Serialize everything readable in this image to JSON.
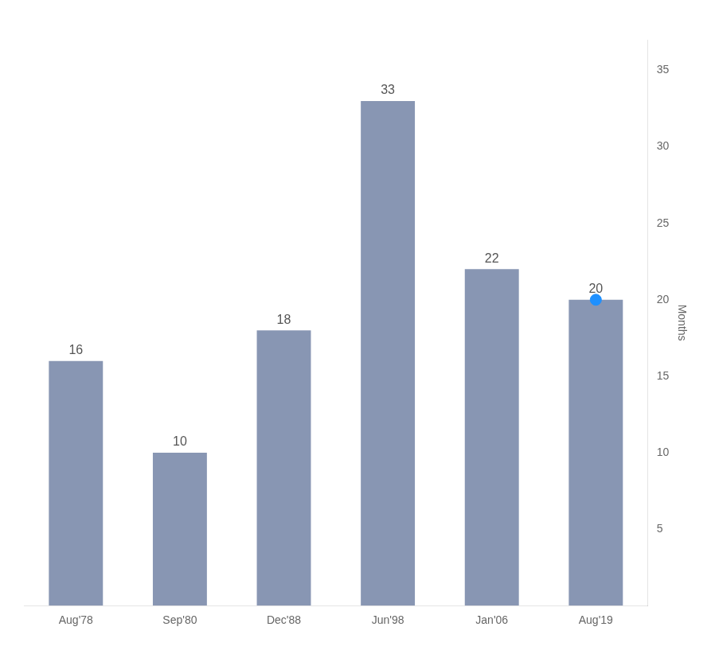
{
  "chart_data": {
    "type": "bar",
    "categories": [
      "Aug'78",
      "Sep'80",
      "Dec'88",
      "Jun'98",
      "Jan'06",
      "Aug'19"
    ],
    "series": [
      {
        "type": "bar",
        "color": "#8896b3",
        "values": [
          16,
          10,
          18,
          33,
          22,
          20
        ]
      },
      {
        "type": "line",
        "marker": "circle",
        "line_style": "none",
        "color": "#1e90ff",
        "values": [
          null,
          null,
          null,
          null,
          null,
          20
        ]
      }
    ],
    "ylabel": "Months",
    "ylim": [
      0,
      37
    ],
    "yticks": [
      5,
      10,
      15,
      20,
      25,
      30,
      35
    ],
    "grid": false,
    "data_labels": true
  }
}
